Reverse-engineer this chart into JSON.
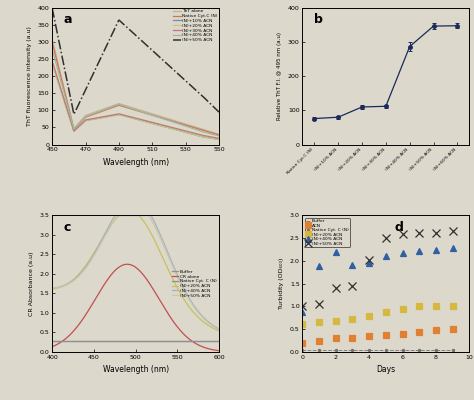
{
  "panel_a": {
    "xlabel": "Wavelength (nm)",
    "ylabel": "ThT fluorescence intensity (a.u)",
    "xlim": [
      450,
      550
    ],
    "ylim": [
      0,
      400
    ],
    "yticks": [
      0,
      50,
      100,
      150,
      200,
      250,
      300,
      350,
      400
    ],
    "xticks": [
      450,
      470,
      490,
      510,
      530,
      550
    ],
    "label": "a",
    "legend": [
      "ThT alone",
      "Native Cyt.C (N)",
      "(N)+10% ACN",
      "(N)+20% ACN",
      "(N)+30% ACN",
      "(N)+40% ACN",
      "(N)+50% ACN"
    ],
    "colors": [
      "#c8b090",
      "#c87850",
      "#6090c0",
      "#c8c878",
      "#c07878",
      "#a0b8a0",
      "#303030"
    ],
    "linestyles": [
      "-",
      "-",
      "-",
      "-",
      "-",
      "-",
      "-."
    ],
    "linewidths": [
      0.9,
      0.9,
      0.9,
      0.9,
      0.9,
      0.9,
      1.1
    ]
  },
  "panel_b": {
    "ylabel": "Relative ThT F.I. @ 495 nm (a.u)",
    "ylim": [
      0,
      400
    ],
    "yticks": [
      0,
      100,
      200,
      300,
      400
    ],
    "label": "b",
    "x_labels": [
      "Native Cyt.C (N)",
      "(N)+10% ACN",
      "(N)+20% ACN",
      "(N)+30% ACN",
      "(N)+40% ACN",
      "(N)+50% ACN",
      "(N)+60% ACN"
    ],
    "y_values": [
      76,
      80,
      110,
      112,
      287,
      347,
      348
    ],
    "y_errors": [
      4,
      4,
      5,
      5,
      12,
      8,
      8
    ],
    "color": "#1a2a5a"
  },
  "panel_c": {
    "xlabel": "Wavelength (nm)",
    "ylabel": "CR Absorbance (a.u)",
    "xlim": [
      400,
      600
    ],
    "ylim": [
      0,
      3.5
    ],
    "yticks": [
      0,
      0.5,
      1.0,
      1.5,
      2.0,
      2.5,
      3.0,
      3.5
    ],
    "xticks": [
      400,
      450,
      500,
      550,
      600
    ],
    "label": "c",
    "legend": [
      "Buffer",
      "CR alone",
      "Native Cyt. C (N)",
      "(N)+20% ACN",
      "(N)+40% ACN",
      "(N)+50% ACN"
    ],
    "colors": [
      "#909090",
      "#c05050",
      "#909090",
      "#c8c060",
      "#a8b0c0",
      "#c8c8a8"
    ],
    "linestyles": [
      "-",
      "-",
      "-",
      "-",
      "-",
      "-"
    ],
    "linewidths": [
      0.9,
      0.9,
      0.9,
      0.9,
      0.9,
      0.9
    ]
  },
  "panel_d": {
    "xlabel": "Days",
    "ylabel": "Turbidity (OD₆₀₀)",
    "xlim": [
      0,
      10
    ],
    "ylim": [
      0,
      3.0
    ],
    "yticks": [
      0,
      0.5,
      1.0,
      1.5,
      2.0,
      2.5,
      3.0
    ],
    "xticks": [
      0,
      2,
      4,
      6,
      8,
      10
    ],
    "label": "d",
    "legend": [
      "Buffer",
      "ACN",
      "Native Cyt. C (N)",
      "(N)+20% ACN",
      "(N)+40% ACN",
      "(N)+50% ACN"
    ],
    "colors": [
      "#808080",
      "#e08030",
      "#707070",
      "#d4b840",
      "#3060a0",
      "#303030"
    ],
    "markers": [
      "-",
      "s",
      ".",
      "s",
      "^",
      "x"
    ],
    "markersizes": [
      4,
      4,
      4,
      4,
      5,
      6
    ]
  },
  "bg_color": "#ddd8cc"
}
